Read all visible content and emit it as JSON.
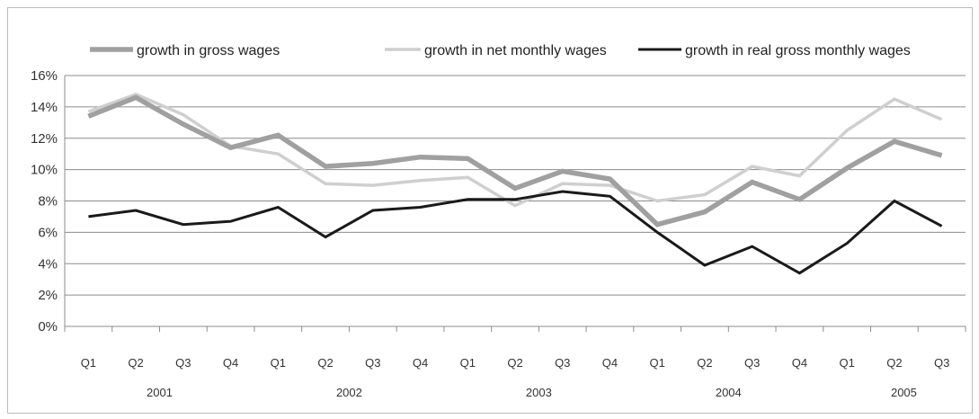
{
  "chart_data": {
    "type": "line",
    "title": "",
    "xlabel": "",
    "ylabel": "",
    "ylim": [
      0,
      16
    ],
    "yticks": [
      "0%",
      "2%",
      "4%",
      "6%",
      "8%",
      "10%",
      "12%",
      "14%",
      "16%"
    ],
    "grid": "horizontal",
    "legend_position": "top",
    "categories": [
      "Q1",
      "Q2",
      "Q3",
      "Q4",
      "Q1",
      "Q2",
      "Q3",
      "Q4",
      "Q1",
      "Q2",
      "Q3",
      "Q4",
      "Q1",
      "Q2",
      "Q3",
      "Q4",
      "Q1",
      "Q2",
      "Q3"
    ],
    "years": [
      {
        "label": "2001",
        "center_index": 1.5
      },
      {
        "label": "2002",
        "center_index": 5.5
      },
      {
        "label": "2003",
        "center_index": 9.5
      },
      {
        "label": "2004",
        "center_index": 13.5
      },
      {
        "label": "2005",
        "center_index": 17.2
      }
    ],
    "series": [
      {
        "name": "growth in gross wages",
        "color": "#a0a0a0",
        "values": [
          13.4,
          14.6,
          12.9,
          11.4,
          12.2,
          10.2,
          10.4,
          10.8,
          10.7,
          8.8,
          9.9,
          9.4,
          6.5,
          7.3,
          9.2,
          8.1,
          10.1,
          11.8,
          10.9
        ]
      },
      {
        "name": "growth in net monthly wages",
        "color": "#cfcfcf",
        "values": [
          13.7,
          14.8,
          13.5,
          11.5,
          11.0,
          9.1,
          9.0,
          9.3,
          9.5,
          7.7,
          9.1,
          9.0,
          8.0,
          8.4,
          10.2,
          9.6,
          12.5,
          14.5,
          13.2
        ]
      },
      {
        "name": "growth in real gross monthly wages",
        "color": "#1a1a1a",
        "values": [
          7.0,
          7.4,
          6.5,
          6.7,
          7.6,
          5.7,
          7.4,
          7.6,
          8.1,
          8.1,
          8.6,
          8.3,
          6.0,
          3.9,
          5.1,
          3.4,
          5.3,
          8.0,
          6.4
        ]
      }
    ]
  }
}
